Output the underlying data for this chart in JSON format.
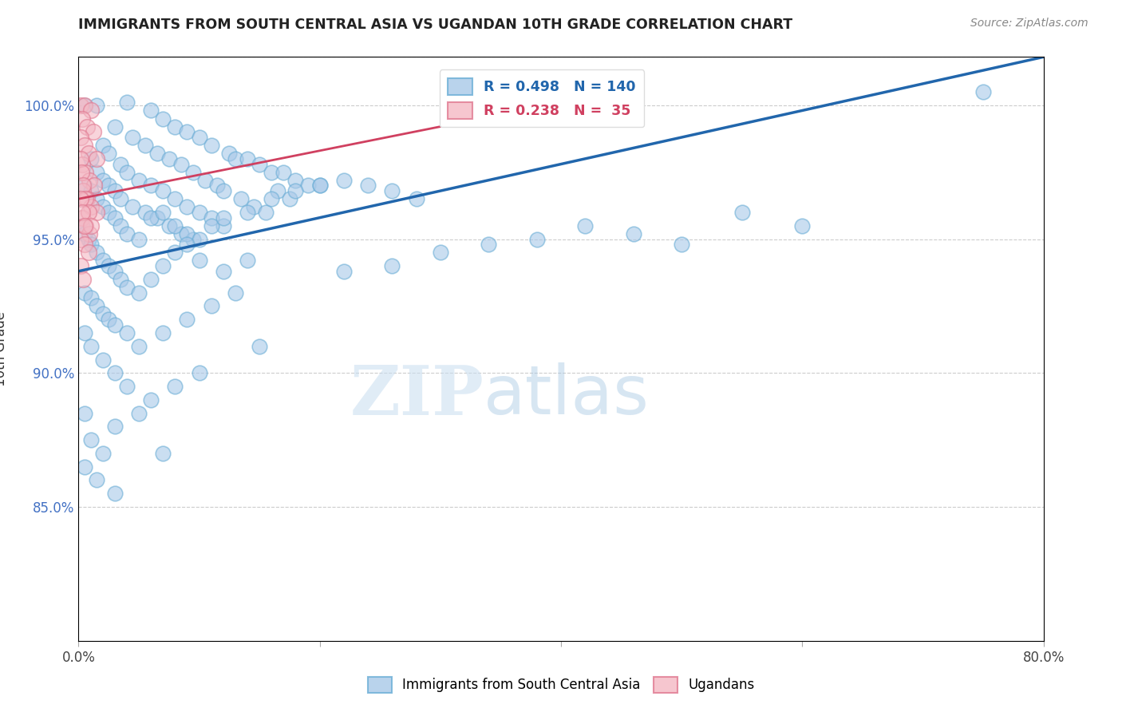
{
  "title": "IMMIGRANTS FROM SOUTH CENTRAL ASIA VS UGANDAN 10TH GRADE CORRELATION CHART",
  "source": "Source: ZipAtlas.com",
  "ylabel": "10th Grade",
  "y_ticks": [
    85.0,
    90.0,
    95.0,
    100.0
  ],
  "x_min": 0.0,
  "x_max": 80.0,
  "y_min": 80.0,
  "y_max": 101.8,
  "watermark_zip": "ZIP",
  "watermark_atlas": "atlas",
  "legend_blue_r": "R = 0.498",
  "legend_blue_n": "N = 140",
  "legend_pink_r": "R = 0.238",
  "legend_pink_n": "N =  35",
  "blue_face": "#a8c8e8",
  "blue_edge": "#6baed6",
  "pink_face": "#f4b8c4",
  "pink_edge": "#e07890",
  "blue_line_color": "#2166ac",
  "pink_line_color": "#d04060",
  "legend_blue_color": "#2166ac",
  "legend_pink_color": "#d04060",
  "tick_color": "#4472c4",
  "blue_scatter": [
    [
      0.5,
      100.0
    ],
    [
      1.5,
      100.0
    ],
    [
      4.0,
      100.1
    ],
    [
      6.0,
      99.8
    ],
    [
      7.0,
      99.5
    ],
    [
      8.0,
      99.2
    ],
    [
      9.0,
      99.0
    ],
    [
      10.0,
      98.8
    ],
    [
      11.0,
      98.5
    ],
    [
      12.5,
      98.2
    ],
    [
      13.0,
      98.0
    ],
    [
      14.0,
      98.0
    ],
    [
      15.0,
      97.8
    ],
    [
      16.0,
      97.5
    ],
    [
      17.0,
      97.5
    ],
    [
      18.0,
      97.2
    ],
    [
      19.0,
      97.0
    ],
    [
      20.0,
      97.0
    ],
    [
      3.0,
      99.2
    ],
    [
      4.5,
      98.8
    ],
    [
      5.5,
      98.5
    ],
    [
      6.5,
      98.2
    ],
    [
      7.5,
      98.0
    ],
    [
      8.5,
      97.8
    ],
    [
      9.5,
      97.5
    ],
    [
      10.5,
      97.2
    ],
    [
      11.5,
      97.0
    ],
    [
      12.0,
      96.8
    ],
    [
      13.5,
      96.5
    ],
    [
      14.5,
      96.2
    ],
    [
      15.5,
      96.0
    ],
    [
      16.5,
      96.8
    ],
    [
      17.5,
      96.5
    ],
    [
      2.0,
      98.5
    ],
    [
      2.5,
      98.2
    ],
    [
      3.5,
      97.8
    ],
    [
      4.0,
      97.5
    ],
    [
      5.0,
      97.2
    ],
    [
      6.0,
      97.0
    ],
    [
      7.0,
      96.8
    ],
    [
      8.0,
      96.5
    ],
    [
      9.0,
      96.2
    ],
    [
      10.0,
      96.0
    ],
    [
      11.0,
      95.8
    ],
    [
      12.0,
      95.5
    ],
    [
      1.0,
      98.0
    ],
    [
      1.5,
      97.5
    ],
    [
      2.0,
      97.2
    ],
    [
      2.5,
      97.0
    ],
    [
      3.0,
      96.8
    ],
    [
      3.5,
      96.5
    ],
    [
      4.5,
      96.2
    ],
    [
      5.5,
      96.0
    ],
    [
      6.5,
      95.8
    ],
    [
      7.5,
      95.5
    ],
    [
      8.5,
      95.2
    ],
    [
      9.5,
      95.0
    ],
    [
      0.5,
      97.0
    ],
    [
      1.0,
      96.8
    ],
    [
      1.5,
      96.5
    ],
    [
      2.0,
      96.2
    ],
    [
      2.5,
      96.0
    ],
    [
      3.0,
      95.8
    ],
    [
      3.5,
      95.5
    ],
    [
      4.0,
      95.2
    ],
    [
      5.0,
      95.0
    ],
    [
      6.0,
      95.8
    ],
    [
      7.0,
      96.0
    ],
    [
      8.0,
      95.5
    ],
    [
      9.0,
      95.2
    ],
    [
      10.0,
      95.0
    ],
    [
      11.0,
      95.5
    ],
    [
      12.0,
      95.8
    ],
    [
      14.0,
      96.0
    ],
    [
      16.0,
      96.5
    ],
    [
      18.0,
      96.8
    ],
    [
      20.0,
      97.0
    ],
    [
      22.0,
      97.2
    ],
    [
      24.0,
      97.0
    ],
    [
      26.0,
      96.8
    ],
    [
      28.0,
      96.5
    ],
    [
      0.3,
      95.5
    ],
    [
      0.5,
      95.2
    ],
    [
      0.8,
      95.0
    ],
    [
      1.0,
      94.8
    ],
    [
      1.5,
      94.5
    ],
    [
      2.0,
      94.2
    ],
    [
      2.5,
      94.0
    ],
    [
      3.0,
      93.8
    ],
    [
      3.5,
      93.5
    ],
    [
      4.0,
      93.2
    ],
    [
      5.0,
      93.0
    ],
    [
      6.0,
      93.5
    ],
    [
      7.0,
      94.0
    ],
    [
      8.0,
      94.5
    ],
    [
      9.0,
      94.8
    ],
    [
      10.0,
      94.2
    ],
    [
      12.0,
      93.8
    ],
    [
      14.0,
      94.2
    ],
    [
      0.5,
      93.0
    ],
    [
      1.0,
      92.8
    ],
    [
      1.5,
      92.5
    ],
    [
      2.0,
      92.2
    ],
    [
      2.5,
      92.0
    ],
    [
      3.0,
      91.8
    ],
    [
      4.0,
      91.5
    ],
    [
      5.0,
      91.0
    ],
    [
      7.0,
      91.5
    ],
    [
      9.0,
      92.0
    ],
    [
      11.0,
      92.5
    ],
    [
      13.0,
      93.0
    ],
    [
      0.5,
      91.5
    ],
    [
      1.0,
      91.0
    ],
    [
      2.0,
      90.5
    ],
    [
      3.0,
      90.0
    ],
    [
      4.0,
      89.5
    ],
    [
      6.0,
      89.0
    ],
    [
      8.0,
      89.5
    ],
    [
      10.0,
      90.0
    ],
    [
      15.0,
      91.0
    ],
    [
      0.5,
      88.5
    ],
    [
      1.0,
      87.5
    ],
    [
      2.0,
      87.0
    ],
    [
      3.0,
      88.0
    ],
    [
      5.0,
      88.5
    ],
    [
      7.0,
      87.0
    ],
    [
      0.5,
      86.5
    ],
    [
      1.5,
      86.0
    ],
    [
      3.0,
      85.5
    ],
    [
      22.0,
      93.8
    ],
    [
      26.0,
      94.0
    ],
    [
      30.0,
      94.5
    ],
    [
      34.0,
      94.8
    ],
    [
      38.0,
      95.0
    ],
    [
      42.0,
      95.5
    ],
    [
      46.0,
      95.2
    ],
    [
      50.0,
      94.8
    ],
    [
      55.0,
      96.0
    ],
    [
      60.0,
      95.5
    ],
    [
      75.0,
      100.5
    ]
  ],
  "pink_scatter": [
    [
      0.2,
      100.0
    ],
    [
      0.5,
      100.0
    ],
    [
      1.0,
      99.8
    ],
    [
      0.3,
      99.5
    ],
    [
      0.7,
      99.2
    ],
    [
      1.2,
      99.0
    ],
    [
      0.2,
      98.8
    ],
    [
      0.5,
      98.5
    ],
    [
      0.8,
      98.2
    ],
    [
      1.5,
      98.0
    ],
    [
      0.3,
      97.8
    ],
    [
      0.6,
      97.5
    ],
    [
      0.9,
      97.2
    ],
    [
      1.3,
      97.0
    ],
    [
      0.4,
      96.8
    ],
    [
      0.7,
      96.5
    ],
    [
      1.0,
      96.2
    ],
    [
      1.5,
      96.0
    ],
    [
      0.3,
      95.8
    ],
    [
      0.6,
      95.5
    ],
    [
      0.9,
      95.2
    ],
    [
      0.2,
      95.0
    ],
    [
      0.5,
      94.8
    ],
    [
      0.8,
      94.5
    ],
    [
      0.15,
      98.0
    ],
    [
      0.25,
      97.5
    ],
    [
      0.4,
      97.0
    ],
    [
      0.6,
      96.5
    ],
    [
      0.8,
      96.0
    ],
    [
      1.0,
      95.5
    ],
    [
      0.15,
      96.5
    ],
    [
      0.3,
      96.0
    ],
    [
      0.5,
      95.5
    ],
    [
      0.2,
      94.0
    ],
    [
      0.4,
      93.5
    ]
  ],
  "blue_trendline_x": [
    0.0,
    80.0
  ],
  "blue_trendline_y": [
    93.8,
    101.8
  ],
  "pink_trendline_x": [
    0.0,
    30.0
  ],
  "pink_trendline_y": [
    96.5,
    99.2
  ],
  "x_tick_positions": [
    0,
    20,
    40,
    60,
    80
  ],
  "x_tick_labels_show": [
    true,
    false,
    false,
    false,
    true
  ]
}
